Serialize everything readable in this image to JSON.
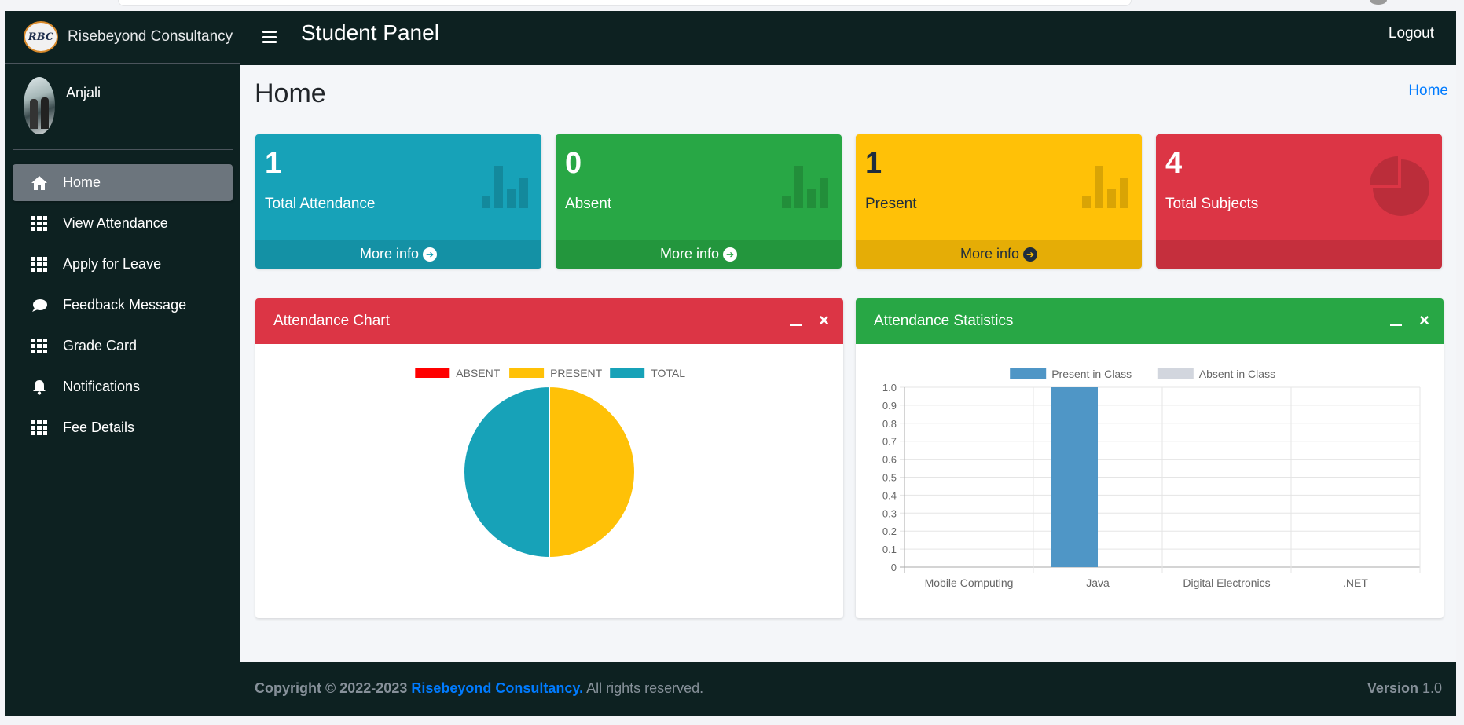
{
  "brand": {
    "logo_text": "RBC",
    "name": "Risebeyond Consultancy"
  },
  "user": {
    "name": "Anjali"
  },
  "sidebar": {
    "items": [
      {
        "label": "Home",
        "icon": "home-icon",
        "active": true
      },
      {
        "label": "View Attendance",
        "icon": "grid-icon"
      },
      {
        "label": "Apply for Leave",
        "icon": "grid-icon"
      },
      {
        "label": "Feedback Message",
        "icon": "comment-icon"
      },
      {
        "label": "Grade Card",
        "icon": "grid-icon"
      },
      {
        "label": "Notifications",
        "icon": "bell-icon"
      },
      {
        "label": "Fee Details",
        "icon": "grid-icon"
      }
    ]
  },
  "header": {
    "title": "Student Panel",
    "logout": "Logout"
  },
  "page": {
    "title": "Home",
    "breadcrumb": "Home"
  },
  "stats": [
    {
      "value": "1",
      "label": "Total Attendance",
      "more": "More info",
      "color": "#17a2b8",
      "icon": "bar-chart-icon"
    },
    {
      "value": "0",
      "label": "Absent",
      "more": "More info",
      "color": "#28a745",
      "icon": "bar-chart-icon"
    },
    {
      "value": "1",
      "label": "Present",
      "more": "More info",
      "color": "#ffc107",
      "icon": "bar-chart-icon"
    },
    {
      "value": "4",
      "label": "Total Subjects",
      "more": "",
      "color": "#dc3545",
      "icon": "pie-chart-icon"
    }
  ],
  "cards": {
    "attendance_chart": {
      "title": "Attendance Chart"
    },
    "attendance_stats": {
      "title": "Attendance Statistics"
    }
  },
  "chart_data": [
    {
      "type": "pie",
      "title": "Attendance Chart",
      "labels": [
        "ABSENT",
        "PRESENT",
        "TOTAL"
      ],
      "values": [
        0,
        1,
        1
      ],
      "colors": [
        "#ff0000",
        "#ffc107",
        "#17a2b8"
      ],
      "legend": "top"
    },
    {
      "type": "bar",
      "title": "Attendance Statistics",
      "categories": [
        "Mobile Computing",
        "Java",
        "Digital Electronics",
        ".NET"
      ],
      "series": [
        {
          "name": "Present in Class",
          "values": [
            0,
            1,
            0,
            0
          ],
          "color": "#4f96c6"
        },
        {
          "name": "Absent in Class",
          "values": [
            0,
            0,
            0,
            0
          ],
          "color": "#d2d6de"
        }
      ],
      "ylim": [
        0,
        1
      ],
      "yticks": [
        "0",
        "0.1",
        "0.2",
        "0.3",
        "0.4",
        "0.5",
        "0.6",
        "0.7",
        "0.8",
        "0.9",
        "1.0"
      ],
      "grid": true,
      "legend": "top"
    }
  ],
  "footer": {
    "copyright": "Copyright © 2022-2023",
    "company": "Risebeyond Consultancy.",
    "rights": "All rights reserved.",
    "version_label": "Version",
    "version": "1.0"
  }
}
